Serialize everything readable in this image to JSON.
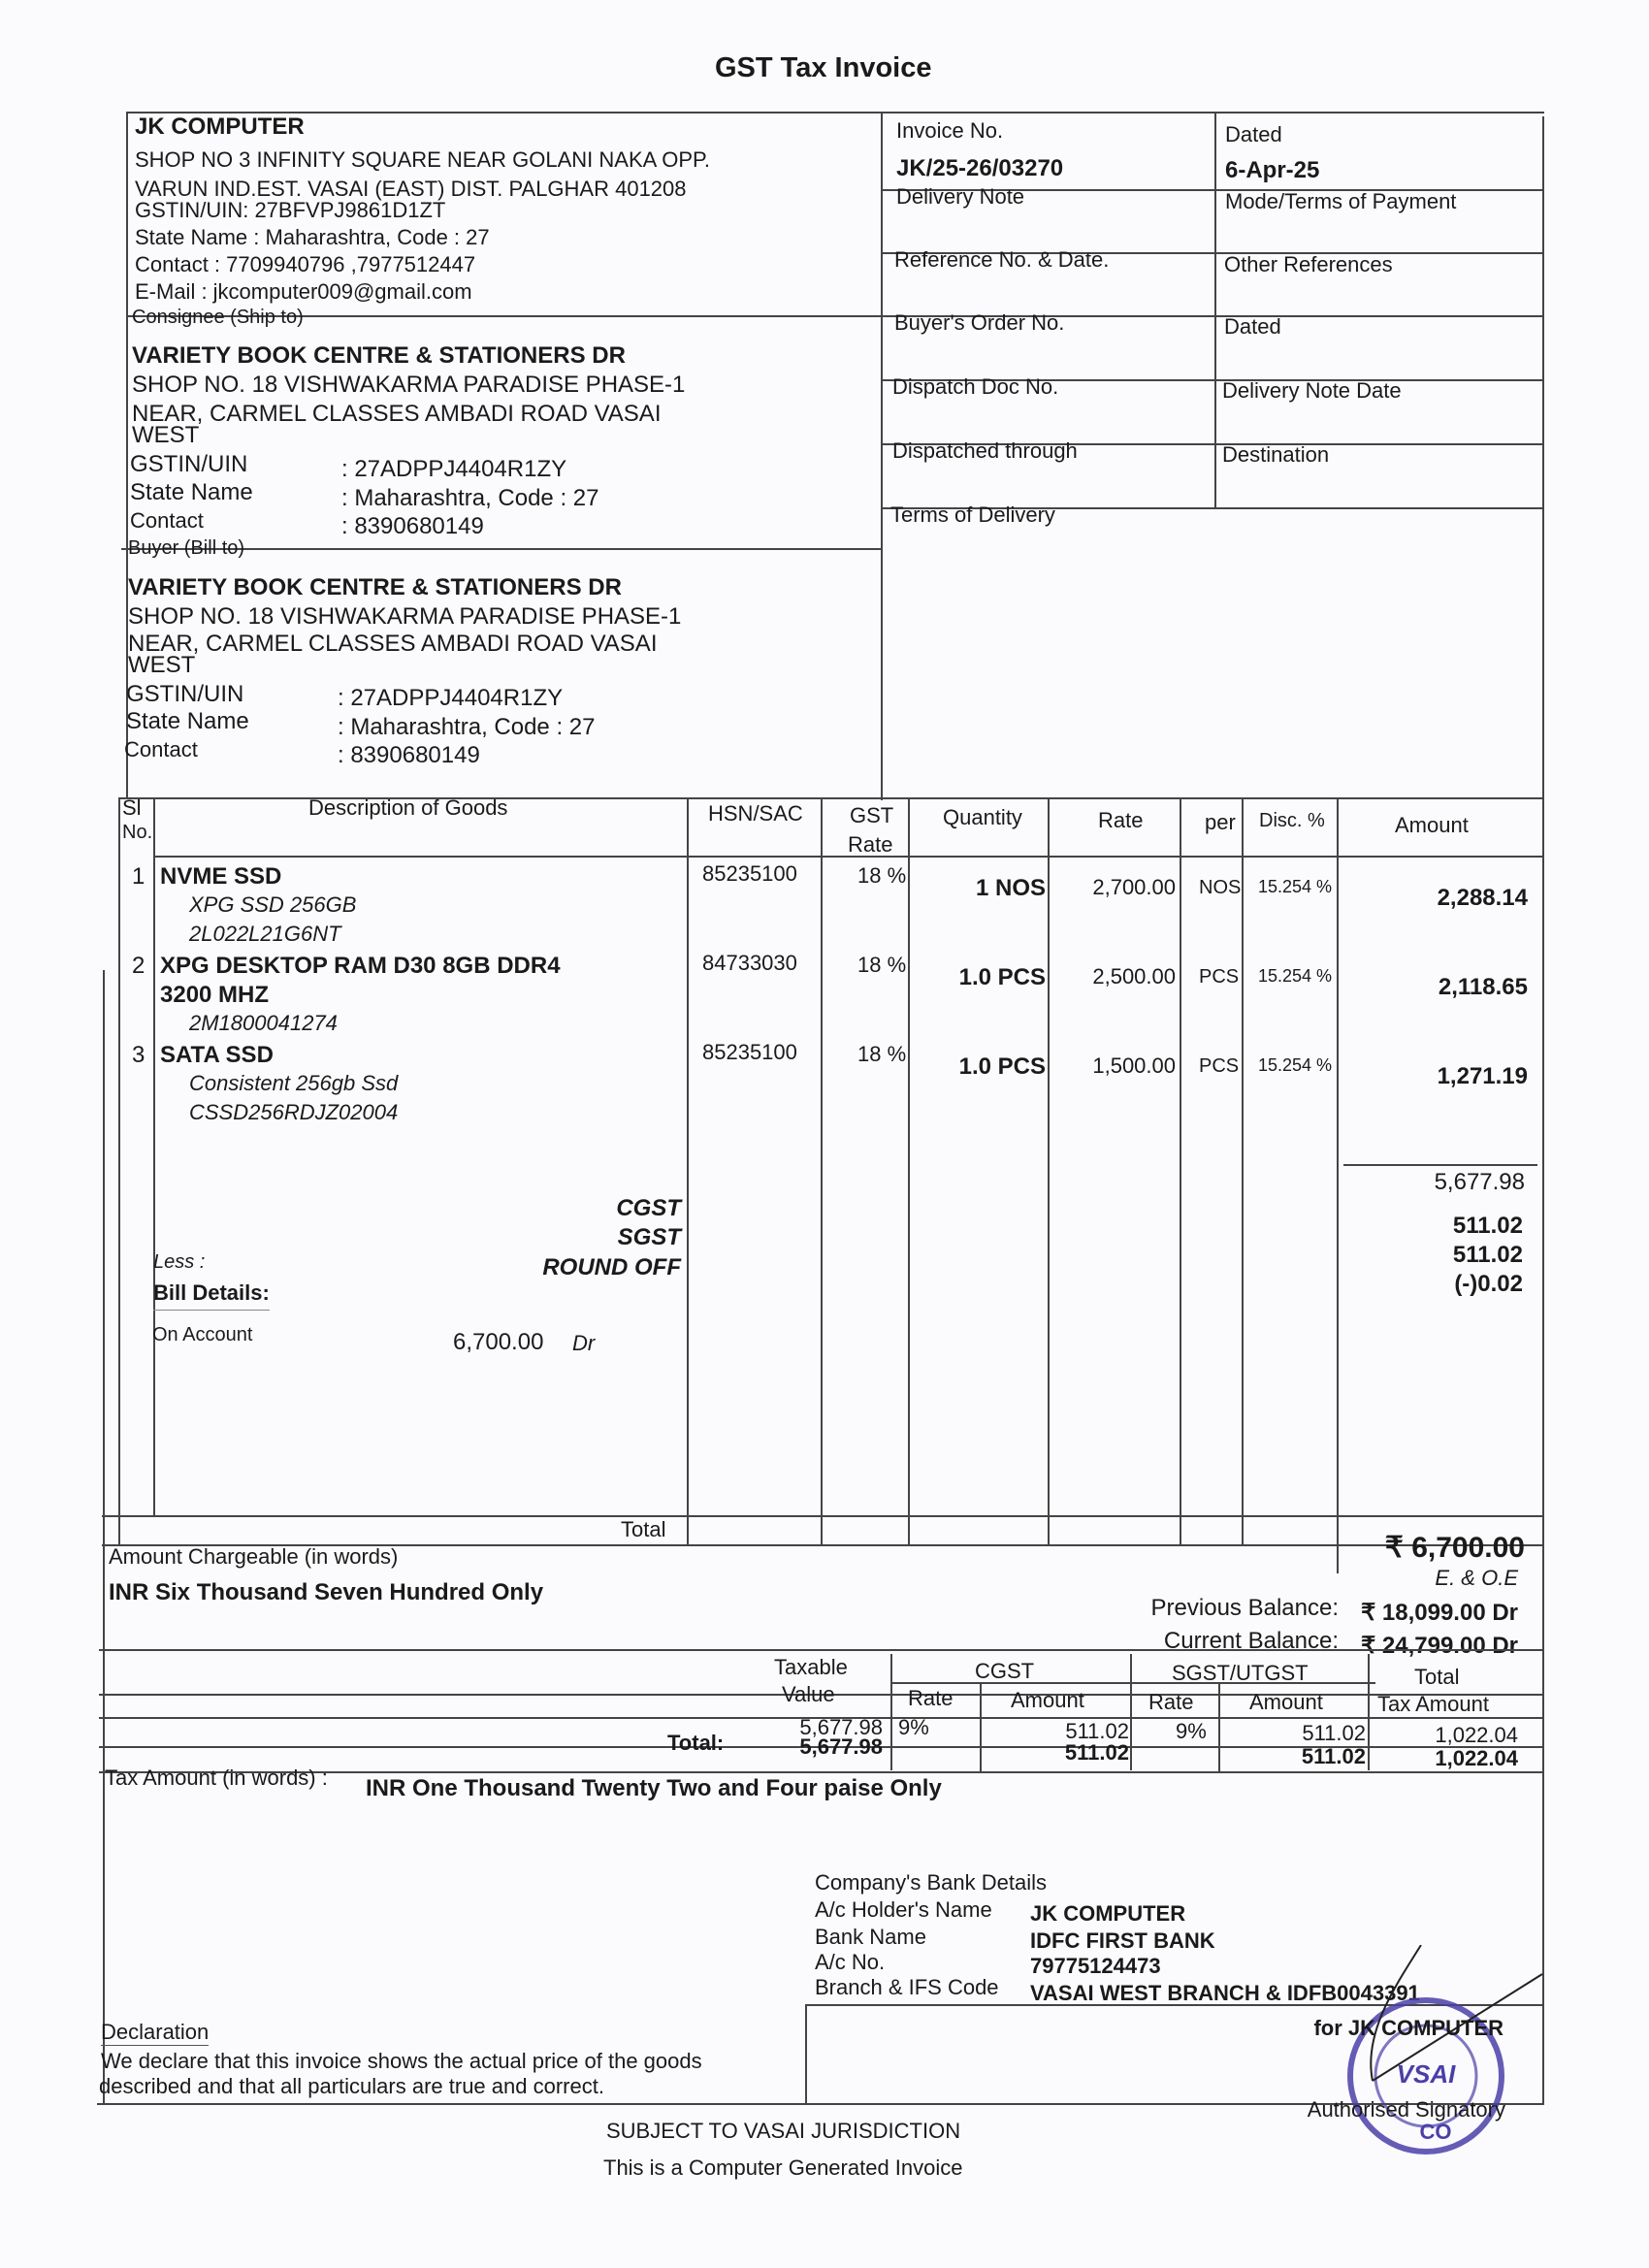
{
  "title": "GST Tax Invoice",
  "seller": {
    "name": "JK COMPUTER",
    "address1": "SHOP NO 3 INFINITY SQUARE NEAR GOLANI NAKA  OPP.",
    "address2": "VARUN IND.EST. VASAI (EAST) DIST. PALGHAR 401208",
    "gstin": "GSTIN/UIN: 27BFVPJ9861D1ZT",
    "state": "State Name :  Maharashtra, Code : 27",
    "contact": "Contact : 7709940796  ,7977512447",
    "email": "E-Mail : jkcomputer009@gmail.com"
  },
  "consignee": {
    "heading": "Consignee (Ship to)",
    "name": "VARIETY BOOK CENTRE & STATIONERS DR",
    "address1": "SHOP NO. 18 VISHWAKARMA PARADISE PHASE-1",
    "address2": "NEAR, CARMEL CLASSES AMBADI ROAD VASAI",
    "address3": "WEST",
    "gstin_label": "GSTIN/UIN",
    "gstin": ": 27ADPPJ4404R1ZY",
    "state_label": "State Name",
    "state": ": Maharashtra, Code : 27",
    "contact_label": "Contact",
    "contact": ": 8390680149"
  },
  "buyer": {
    "heading": "Buyer (Bill to)",
    "name": "VARIETY BOOK CENTRE & STATIONERS DR",
    "address1": "SHOP NO. 18 VISHWAKARMA PARADISE PHASE-1",
    "address2": "NEAR, CARMEL CLASSES AMBADI ROAD VASAI",
    "address3": "WEST",
    "gstin_label": "GSTIN/UIN",
    "gstin": ": 27ADPPJ4404R1ZY",
    "state_label": "State Name",
    "state": ": Maharashtra, Code : 27",
    "contact_label": "Contact",
    "contact": ": 8390680149"
  },
  "meta": {
    "invoice_no_label": "Invoice No.",
    "invoice_no": "JK/25-26/03270",
    "dated_label": "Dated",
    "dated": "6-Apr-25",
    "delivery_note": "Delivery Note",
    "mode_terms": "Mode/Terms of Payment",
    "reference": "Reference No. & Date.",
    "other_refs": "Other References",
    "buyers_order": "Buyer's Order No.",
    "dated2": "Dated",
    "dispatch_doc": "Dispatch Doc No.",
    "delivery_note_date": "Delivery Note Date",
    "dispatched_through": "Dispatched through",
    "destination": "Destination",
    "terms_delivery": "Terms of Delivery"
  },
  "items_header": {
    "sl1": "Sl",
    "sl2": "No.",
    "desc": "Description of Goods",
    "hsn": "HSN/SAC",
    "gst1": "GST",
    "gst2": "Rate",
    "qty": "Quantity",
    "rate": "Rate",
    "per": "per",
    "disc": "Disc. %",
    "amount": "Amount"
  },
  "items": [
    {
      "sl": "1",
      "name": "NVME SSD",
      "name2": "",
      "sub1": "XPG SSD 256GB",
      "sub2": "2L022L21G6NT",
      "hsn": "85235100",
      "gst": "18 %",
      "qty": "1 NOS",
      "rate": "2,700.00",
      "per": "NOS",
      "disc": "15.254 %",
      "amount": "2,288.14"
    },
    {
      "sl": "2",
      "name": "XPG DESKTOP RAM D30 8GB DDR4",
      "name2": "3200 MHZ",
      "sub1": "2M1800041274",
      "sub2": "",
      "hsn": "84733030",
      "gst": "18 %",
      "qty": "1.0 PCS",
      "rate": "2,500.00",
      "per": "PCS",
      "disc": "15.254 %",
      "amount": "2,118.65"
    },
    {
      "sl": "3",
      "name": "SATA SSD",
      "name2": "",
      "sub1": "Consistent  256gb Ssd",
      "sub2": "CSSD256RDJZ02004",
      "hsn": "85235100",
      "gst": "18 %",
      "qty": "1.0 PCS",
      "rate": "1,500.00",
      "per": "PCS",
      "disc": "15.254 %",
      "amount": "1,271.19"
    }
  ],
  "subtotal": "5,677.98",
  "taxes": {
    "cgst_label": "CGST",
    "cgst": "511.02",
    "sgst_label": "SGST",
    "sgst": "511.02",
    "roundoff_label": "ROUND OFF",
    "roundoff": "(-)0.02",
    "less": "Less :"
  },
  "bill": {
    "heading": "Bill Details:",
    "on_account": "On Account",
    "on_account_value": "6,700.00",
    "dr": "Dr"
  },
  "total": {
    "label": "Total",
    "value": "₹ 6,700.00"
  },
  "words": {
    "label": "Amount Chargeable (in words)",
    "value": "INR Six Thousand Seven Hundred Only",
    "eoe": "E. & O.E"
  },
  "balances": {
    "prev_label": "Previous Balance:",
    "prev": "₹ 18,099.00 Dr",
    "curr_label": "Current Balance:",
    "curr": "₹ 24,799.00 Dr"
  },
  "tax_table": {
    "taxable1": "Taxable",
    "taxable2": "Value",
    "cgst": "CGST",
    "sgst": "SGST/UTGST",
    "rate": "Rate",
    "amount": "Amount",
    "total1": "Total",
    "total2": "Tax Amount",
    "row": {
      "taxable": "5,677.98",
      "cgst_rate": "9%",
      "cgst_amt": "511.02",
      "sgst_rate": "9%",
      "sgst_amt": "511.02",
      "total": "1,022.04"
    },
    "total_label": "Total:",
    "totals": {
      "taxable": "5,677.98",
      "cgst_amt": "511.02",
      "sgst_amt": "511.02",
      "total": "1,022.04"
    }
  },
  "tax_words": {
    "label": "Tax Amount (in words)  :",
    "value": "INR One Thousand Twenty Two and Four paise Only"
  },
  "bank": {
    "heading": "Company's Bank Details",
    "holder_label": "A/c Holder's Name",
    "holder": "JK COMPUTER",
    "bank_label": "Bank Name",
    "bank": "IDFC FIRST BANK",
    "acno_label": "A/c No.",
    "acno": "79775124473",
    "branch_label": "Branch & IFS Code",
    "branch": "VASAI WEST BRANCH & IDFB0043391"
  },
  "declaration": {
    "heading": "Declaration",
    "line1": "We declare that this invoice shows the actual price of the goods",
    "line2": "described and that all particulars are true and correct."
  },
  "signature": {
    "for": "for JK COMPUTER",
    "auth": "Authorised Signatory",
    "stamp_text": "VASAI COMPUTER"
  },
  "footer": {
    "jurisdiction": "SUBJECT TO VASAI JURISDICTION",
    "generated": "This is a Computer Generated Invoice"
  },
  "colors": {
    "stamp": "#4a3fa8",
    "ink": "#1a1a1a"
  }
}
